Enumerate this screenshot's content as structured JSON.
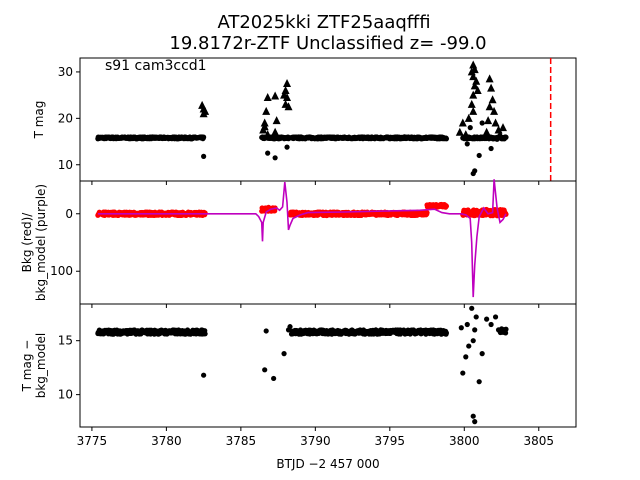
{
  "figure": {
    "title_line1": "AT2025kki  ZTF25aaqfffi",
    "title_line2": "19.8172r-ZTF Unclassified z= -99.0",
    "annotation": "s91 cam3ccd1",
    "xlabel": "BTJD −2 457 000"
  },
  "colors": {
    "black": "#000000",
    "bkg": "#ff0000",
    "bkg_model": "#bf00bf",
    "marker_line": "#ff0000"
  },
  "chart_data": [
    {
      "type": "scatter",
      "panel": "top",
      "ylabel": "T mag",
      "y_inverted": true,
      "xlim": [
        3774.2,
        3807.5
      ],
      "ylim": [
        33,
        6.5
      ],
      "yticks": [
        10,
        20,
        30
      ],
      "xticks": [
        3775,
        3780,
        3785,
        3790,
        3795,
        3800,
        3805
      ],
      "vertical_line": {
        "x": 3805.8,
        "style": "dashed",
        "color": "red"
      },
      "series": [
        {
          "marker": "circle",
          "segments": [
            {
              "x0": 3775.4,
              "x1": 3782.5,
              "y": 15.8
            },
            {
              "x0": 3786.4,
              "x1": 3788.2,
              "y": 15.8
            },
            {
              "x0": 3788.4,
              "x1": 3798.8,
              "y": 15.8
            },
            {
              "x0": 3799.9,
              "x1": 3802.8,
              "y": 15.8
            }
          ],
          "extra_points": [
            [
              3782.5,
              11.8
            ],
            [
              3786.8,
              12.5
            ],
            [
              3787.3,
              11.5
            ],
            [
              3788.1,
              13.8
            ],
            [
              3800.6,
              8.1
            ],
            [
              3800.7,
              8.7
            ],
            [
              3801.0,
              12.0
            ],
            [
              3800.2,
              14.5
            ],
            [
              3801.2,
              19.0
            ],
            [
              3800.4,
              18.0
            ],
            [
              3802.2,
              15.5
            ],
            [
              3801.8,
              13.5
            ]
          ]
        },
        {
          "marker": "triangle",
          "points": [
            [
              3782.5,
              21.0
            ],
            [
              3782.5,
              22.0
            ],
            [
              3782.4,
              22.8
            ],
            [
              3782.6,
              21.5
            ],
            [
              3786.5,
              17.5
            ],
            [
              3786.6,
              19.0
            ],
            [
              3786.7,
              21.5
            ],
            [
              3786.8,
              24.5
            ],
            [
              3786.6,
              18.2
            ],
            [
              3786.8,
              16.5
            ],
            [
              3787.3,
              24.8
            ],
            [
              3787.3,
              17.0
            ],
            [
              3787.4,
              19.5
            ],
            [
              3788.0,
              23.0
            ],
            [
              3788.1,
              24.5
            ],
            [
              3788.0,
              26.0
            ],
            [
              3788.1,
              27.5
            ],
            [
              3787.9,
              25.0
            ],
            [
              3788.2,
              22.5
            ],
            [
              3799.7,
              17.0
            ],
            [
              3799.9,
              19.0
            ],
            [
              3800.1,
              16.5
            ],
            [
              3800.3,
              20.0
            ],
            [
              3800.6,
              21.5
            ],
            [
              3800.5,
              23.0
            ],
            [
              3800.6,
              25.0
            ],
            [
              3800.7,
              27.0
            ],
            [
              3800.6,
              29.0
            ],
            [
              3800.7,
              30.5
            ],
            [
              3800.6,
              31.5
            ],
            [
              3800.8,
              28.0
            ],
            [
              3800.9,
              26.0
            ],
            [
              3800.5,
              30.0
            ],
            [
              3801.5,
              17.0
            ],
            [
              3801.6,
              19.5
            ],
            [
              3801.7,
              22.5
            ],
            [
              3801.9,
              24.0
            ],
            [
              3802.0,
              21.5
            ],
            [
              3802.1,
              19.0
            ],
            [
              3802.3,
              17.5
            ],
            [
              3801.8,
              26.5
            ],
            [
              3801.7,
              28.5
            ],
            [
              3802.4,
              16.5
            ],
            [
              3802.6,
              18.0
            ]
          ]
        }
      ]
    },
    {
      "type": "line",
      "panel": "middle",
      "ylabel": "Bkg (red)/\nbkg_model (purple)",
      "xlim": [
        3774.2,
        3807.5
      ],
      "ylim": [
        -57,
        157
      ],
      "yticks": [
        0,
        100
      ],
      "series": [
        {
          "name": "",
          "color": "#ff0000",
          "marker": "circle",
          "segments": [
            {
              "x0": 3775.4,
              "x1": 3782.6,
              "y": 0,
              "noise": 5
            },
            {
              "x0": 3786.4,
              "x1": 3787.3,
              "y": -8,
              "noise": 6
            },
            {
              "x0": 3788.3,
              "x1": 3797.5,
              "y": 0,
              "noise": 5
            },
            {
              "x0": 3797.5,
              "x1": 3798.8,
              "y": -14,
              "noise": 5
            },
            {
              "x0": 3799.9,
              "x1": 3802.8,
              "y": -2,
              "noise": 9
            }
          ]
        },
        {
          "name": "",
          "color": "#bf00bf",
          "line_points": [
            [
              3775.4,
              0
            ],
            [
              3786.0,
              0
            ],
            [
              3786.2,
              5
            ],
            [
              3786.4,
              15
            ],
            [
              3786.45,
              48
            ],
            [
              3786.5,
              15
            ],
            [
              3786.7,
              -3
            ],
            [
              3787.0,
              -8
            ],
            [
              3787.4,
              -10
            ],
            [
              3787.6,
              -6
            ],
            [
              3787.8,
              -12
            ],
            [
              3787.95,
              -55
            ],
            [
              3788.1,
              -20
            ],
            [
              3788.2,
              28
            ],
            [
              3788.3,
              20
            ],
            [
              3788.5,
              8
            ],
            [
              3789.0,
              2
            ],
            [
              3789.5,
              -2
            ],
            [
              3792.0,
              -3
            ],
            [
              3795.0,
              -5
            ],
            [
              3797.0,
              -6
            ],
            [
              3798.0,
              -8
            ],
            [
              3798.5,
              -2
            ],
            [
              3799.0,
              0
            ],
            [
              3799.8,
              0
            ],
            [
              3800.1,
              2
            ],
            [
              3800.4,
              8
            ],
            [
              3800.5,
              50
            ],
            [
              3800.6,
              145
            ],
            [
              3800.7,
              90
            ],
            [
              3800.85,
              40
            ],
            [
              3801.0,
              5
            ],
            [
              3801.3,
              -10
            ],
            [
              3801.6,
              0
            ],
            [
              3801.9,
              -2
            ],
            [
              3802.0,
              -60
            ],
            [
              3802.2,
              -10
            ],
            [
              3802.4,
              15
            ],
            [
              3802.6,
              10
            ],
            [
              3802.8,
              0
            ]
          ]
        }
      ]
    },
    {
      "type": "scatter",
      "panel": "bottom",
      "ylabel": "T mag −\nbkg_model",
      "y_inverted": true,
      "xlim": [
        3774.2,
        3807.5
      ],
      "ylim": [
        18.4,
        7.0
      ],
      "yticks": [
        10,
        15
      ],
      "xticks": [
        3775,
        3780,
        3785,
        3790,
        3795,
        3800,
        3805
      ],
      "series": [
        {
          "marker": "circle",
          "segments": [
            {
              "x0": 3775.4,
              "x1": 3782.6,
              "y": 15.8
            },
            {
              "x0": 3788.4,
              "x1": 3798.8,
              "y": 15.8
            },
            {
              "x0": 3802.4,
              "x1": 3802.8,
              "y": 15.9
            }
          ],
          "extra_points": [
            [
              3782.5,
              11.8
            ],
            [
              3786.6,
              12.3
            ],
            [
              3787.2,
              11.5
            ],
            [
              3787.9,
              13.8
            ],
            [
              3786.7,
              15.9
            ],
            [
              3788.2,
              16.0
            ],
            [
              3788.3,
              16.3
            ],
            [
              3800.6,
              8.0
            ],
            [
              3800.7,
              7.5
            ],
            [
              3801.0,
              11.2
            ],
            [
              3799.9,
              12.0
            ],
            [
              3800.3,
              14.5
            ],
            [
              3800.1,
              13.5
            ],
            [
              3800.6,
              15.0
            ],
            [
              3800.7,
              16.0
            ],
            [
              3800.2,
              16.5
            ],
            [
              3800.8,
              17.2
            ],
            [
              3801.2,
              13.8
            ],
            [
              3801.5,
              17.0
            ],
            [
              3800.5,
              18.0
            ],
            [
              3799.8,
              16.2
            ],
            [
              3801.8,
              16.5
            ],
            [
              3802.3,
              16.0
            ],
            [
              3802.1,
              17.2
            ]
          ]
        }
      ]
    }
  ]
}
